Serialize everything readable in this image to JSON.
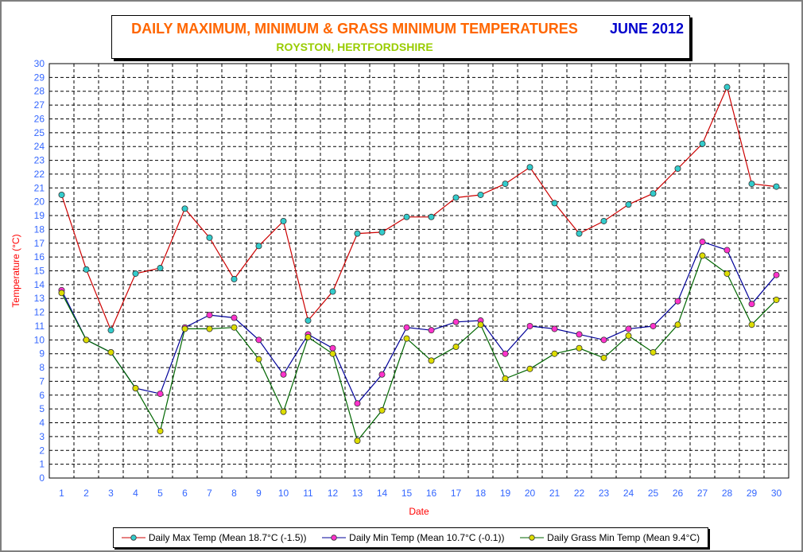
{
  "title": {
    "main": "DAILY MAXIMUM, MINIMUM & GRASS MINIMUM TEMPERATURES",
    "month": "JUNE 2012",
    "subtitle": "ROYSTON, HERTFORDSHIRE"
  },
  "colors": {
    "main_title": "#ff6600",
    "month": "#0000cc",
    "subtitle": "#99cc00",
    "axis_text": "#3366ff",
    "axis_label": "#ff0000"
  },
  "legend": [
    {
      "label": "Daily Max Temp (Mean 18.7°C (-1.5))",
      "line_color": "#cc0000",
      "marker_color": "#33cccc"
    },
    {
      "label": "Daily Min Temp (Mean 10.7°C (-0.1))",
      "line_color": "#000099",
      "marker_color": "#ff33cc"
    },
    {
      "label": "Daily Grass Min Temp (Mean 9.4°C)",
      "line_color": "#006600",
      "marker_color": "#dddd00"
    }
  ],
  "chart_data": {
    "type": "line",
    "title": "DAILY MAXIMUM, MINIMUM & GRASS MINIMUM TEMPERATURES",
    "subtitle": "ROYSTON, HERTFORDSHIRE",
    "xlabel": "Date",
    "ylabel": "Temperature (°C)",
    "ylim": [
      0,
      30
    ],
    "grid": true,
    "legend_position": "bottom",
    "x": [
      1,
      2,
      3,
      4,
      5,
      6,
      7,
      8,
      9,
      10,
      11,
      12,
      13,
      14,
      15,
      16,
      17,
      18,
      19,
      20,
      21,
      22,
      23,
      24,
      25,
      26,
      27,
      28,
      29,
      30
    ],
    "yticks": [
      0,
      1,
      2,
      3,
      4,
      5,
      6,
      7,
      8,
      9,
      10,
      11,
      12,
      13,
      14,
      15,
      16,
      17,
      18,
      19,
      20,
      21,
      22,
      23,
      24,
      25,
      26,
      27,
      28,
      29,
      30
    ],
    "series": [
      {
        "name": "Daily Max Temp (Mean 18.7°C (-1.5))",
        "line_color": "#cc0000",
        "marker_color": "#33cccc",
        "values": [
          20.5,
          15.1,
          10.7,
          14.8,
          15.2,
          19.5,
          17.4,
          14.4,
          16.8,
          18.6,
          11.4,
          13.5,
          17.7,
          17.8,
          18.9,
          18.9,
          20.3,
          20.5,
          21.3,
          22.5,
          19.9,
          17.7,
          18.6,
          19.8,
          20.6,
          22.4,
          24.2,
          28.3,
          21.3,
          21.1
        ]
      },
      {
        "name": "Daily Min Temp (Mean 10.7°C (-0.1))",
        "line_color": "#000099",
        "marker_color": "#ff33cc",
        "values": [
          13.6,
          10.0,
          9.1,
          6.5,
          6.1,
          10.9,
          11.8,
          11.6,
          10.0,
          7.5,
          10.4,
          9.4,
          5.4,
          7.5,
          10.9,
          10.7,
          11.3,
          11.4,
          9.0,
          11.0,
          10.8,
          10.4,
          10.0,
          10.8,
          11.0,
          12.8,
          17.1,
          16.5,
          12.6,
          14.7
        ]
      },
      {
        "name": "Daily Grass Min Temp (Mean 9.4°C)",
        "line_color": "#006600",
        "marker_color": "#dddd00",
        "values": [
          13.4,
          10.0,
          9.1,
          6.5,
          3.4,
          10.8,
          10.8,
          10.9,
          8.6,
          4.8,
          10.2,
          9.0,
          2.7,
          4.9,
          10.1,
          8.5,
          9.5,
          11.1,
          7.2,
          7.9,
          9.0,
          9.4,
          8.7,
          10.3,
          9.1,
          11.1,
          16.1,
          14.8,
          11.1,
          12.9
        ]
      }
    ]
  }
}
